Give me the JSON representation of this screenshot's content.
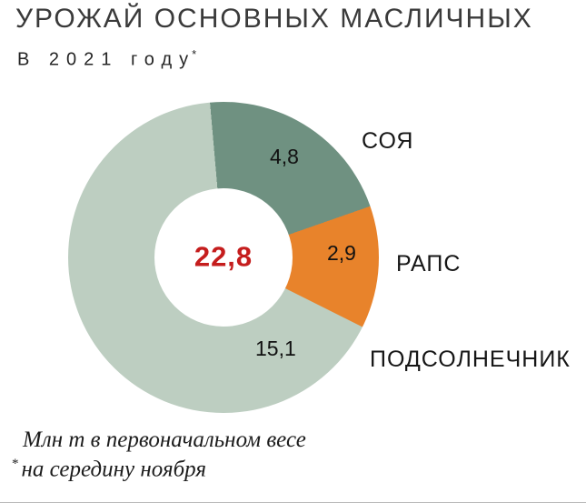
{
  "header": {
    "title": "УРОЖАЙ ОСНОВНЫХ МАСЛИЧНЫХ",
    "subtitle": "В 2021 году",
    "subtitle_marker": "*"
  },
  "chart_data": {
    "type": "pie",
    "subtype": "donut",
    "title": "УРОЖАЙ ОСНОВНЫХ МАСЛИЧНЫХ В 2021 году*",
    "units": "Млн т в первоначальном весе",
    "as_of_note": "на середину ноября",
    "start_angle_deg": -5,
    "center_total": 22.8,
    "center_total_label": "22,8",
    "center_value_color": "#c51d1d",
    "legend_position": "labels-beside-segments",
    "segments": [
      {
        "label": "СОЯ",
        "value": 4.8,
        "value_label": "4,8",
        "color": "#6f9181"
      },
      {
        "label": "РАПС",
        "value": 2.9,
        "value_label": "2,9",
        "color": "#e8832b"
      },
      {
        "label": "ПОДСОЛНЕЧНИК",
        "value": 15.1,
        "value_label": "15,1",
        "color": "#bdcec1"
      }
    ]
  },
  "footnote": {
    "line1": "Млн т в первоначальном весе",
    "marker": "*",
    "line2": "на середину ноября"
  }
}
